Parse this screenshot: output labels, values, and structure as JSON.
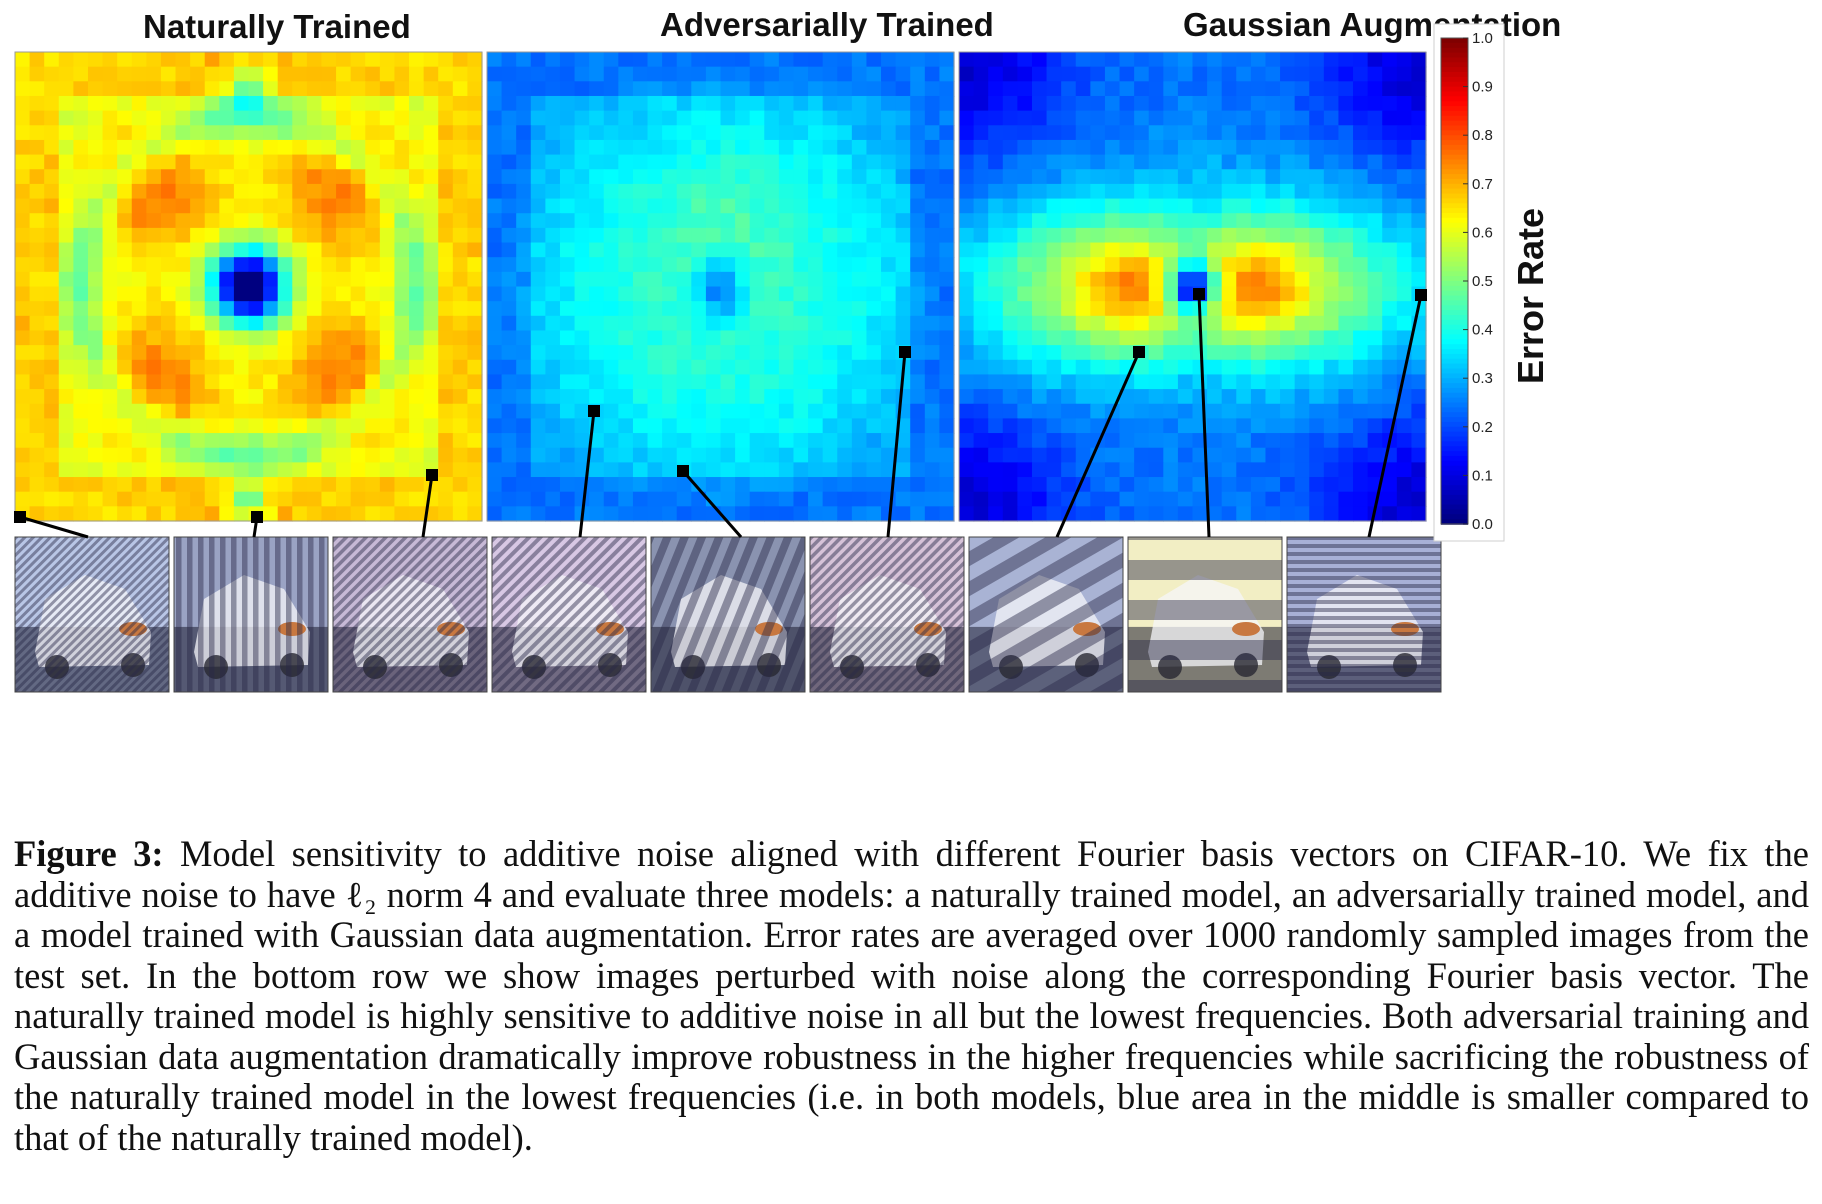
{
  "panels": [
    {
      "title": "Naturally Trained",
      "pattern": "natural"
    },
    {
      "title": "Adversarially Trained",
      "pattern": "adversarial"
    },
    {
      "title": "Gaussian Augmentation",
      "pattern": "gaussian"
    }
  ],
  "colorbar": {
    "label": "Error Rate",
    "ticks": [
      "1.0",
      "0.9",
      "0.8",
      "0.7",
      "0.6",
      "0.5",
      "0.4",
      "0.3",
      "0.2",
      "0.1",
      "0.0"
    ],
    "range": [
      0.0,
      1.0
    ],
    "colormap": "jet"
  },
  "bottom_row": {
    "count": 9,
    "tints": [
      "#b9c6e6",
      "#9aa3c4",
      "#c7b9d6",
      "#d8c8e4",
      "#8a93b0",
      "#d6c2d8",
      "#a9b3d4",
      "#f2eec4",
      "#a8b0d6"
    ]
  },
  "caption": {
    "label": "Figure 3:",
    "text": "Model sensitivity to additive noise aligned with different Fourier basis vectors on CIFAR-10. We fix the additive noise to have ℓ₂ norm 4 and evaluate three models: a naturally trained model, an adversarially trained model, and a model trained with Gaussian data augmentation. Error rates are averaged over 1000 randomly sampled images from the test set. In the bottom row we show images perturbed with noise along the corresponding Fourier basis vector. The naturally trained model is highly sensitive to additive noise in all but the lowest frequencies. Both adversarial training and Gaussian data augmentation dramatically improve robustness in the higher frequencies while sacrificing the robustness of the naturally trained model in the lowest frequencies (i.e. in both models, blue area in the middle is smaller compared to that of the naturally trained model)."
  }
}
